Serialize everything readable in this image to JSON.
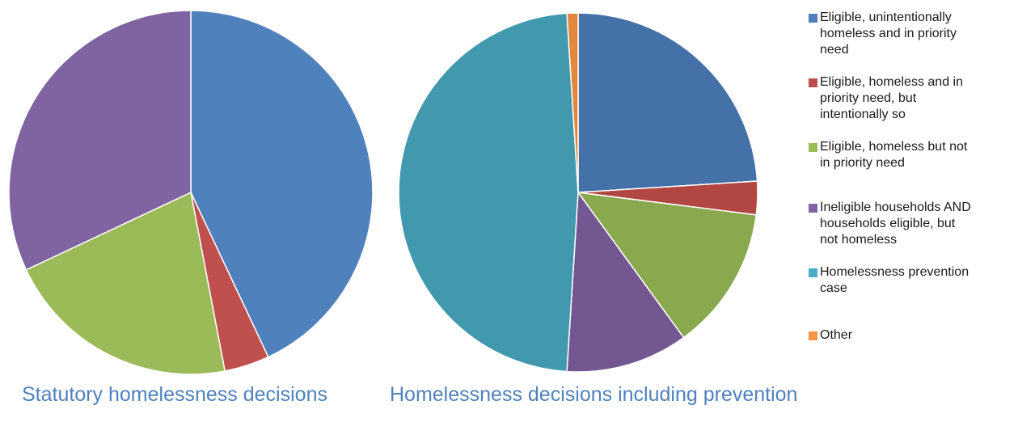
{
  "chart_data": [
    {
      "type": "pie",
      "title": "Statutory homelessness decisions",
      "start_angle_deg": 0,
      "slices": [
        {
          "label": "Eligible, unintentionally homeless and in priority need",
          "value": 43.0,
          "color": "#4f81bd"
        },
        {
          "label": "Eligible, homeless and in priority need, but intentionally so",
          "value": 4.0,
          "color": "#c0504d"
        },
        {
          "label": "Eligible, homeless but not in priority need",
          "value": 21.0,
          "color": "#9bbb59"
        },
        {
          "label": "Ineligible households AND households eligible, but not homeless",
          "value": 32.0,
          "color": "#8064a2"
        }
      ]
    },
    {
      "type": "pie",
      "title": "Homelessness decisions including prevention",
      "start_angle_deg": 0,
      "slices": [
        {
          "label": "Eligible, unintentionally homeless and in priority need",
          "value": 24.0,
          "color": "#4472a8"
        },
        {
          "label": "Eligible, homeless and in priority need, but intentionally so",
          "value": 3.0,
          "color": "#b14643"
        },
        {
          "label": "Eligible, homeless but not in priority need",
          "value": 13.0,
          "color": "#8aa84e"
        },
        {
          "label": "Ineligible households AND households eligible, but not homeless",
          "value": 11.0,
          "color": "#725790"
        },
        {
          "label": "Homelessness prevention case",
          "value": 48.0,
          "color": "#4299ae"
        },
        {
          "label": "Other",
          "value": 1.0,
          "color": "#e0883d"
        }
      ]
    }
  ],
  "legend": [
    {
      "lines": [
        "Eligible, unintentionally",
        "homeless and in priority",
        "need"
      ],
      "color": "#4f81bd"
    },
    {
      "lines": [
        "Eligible, homeless and in",
        "priority need, but",
        "intentionally so"
      ],
      "color": "#c0504d"
    },
    {
      "lines": [
        "Eligible, homeless but not",
        "in priority need"
      ],
      "color": "#9bbb59"
    },
    {
      "lines": [
        "Ineligible households AND",
        "households eligible, but",
        "not homeless"
      ],
      "color": "#8064a2"
    },
    {
      "lines": [
        "Homelessness prevention",
        "case"
      ],
      "color": "#4bacc6"
    },
    {
      "lines": [
        "Other"
      ],
      "color": "#f79646"
    }
  ]
}
